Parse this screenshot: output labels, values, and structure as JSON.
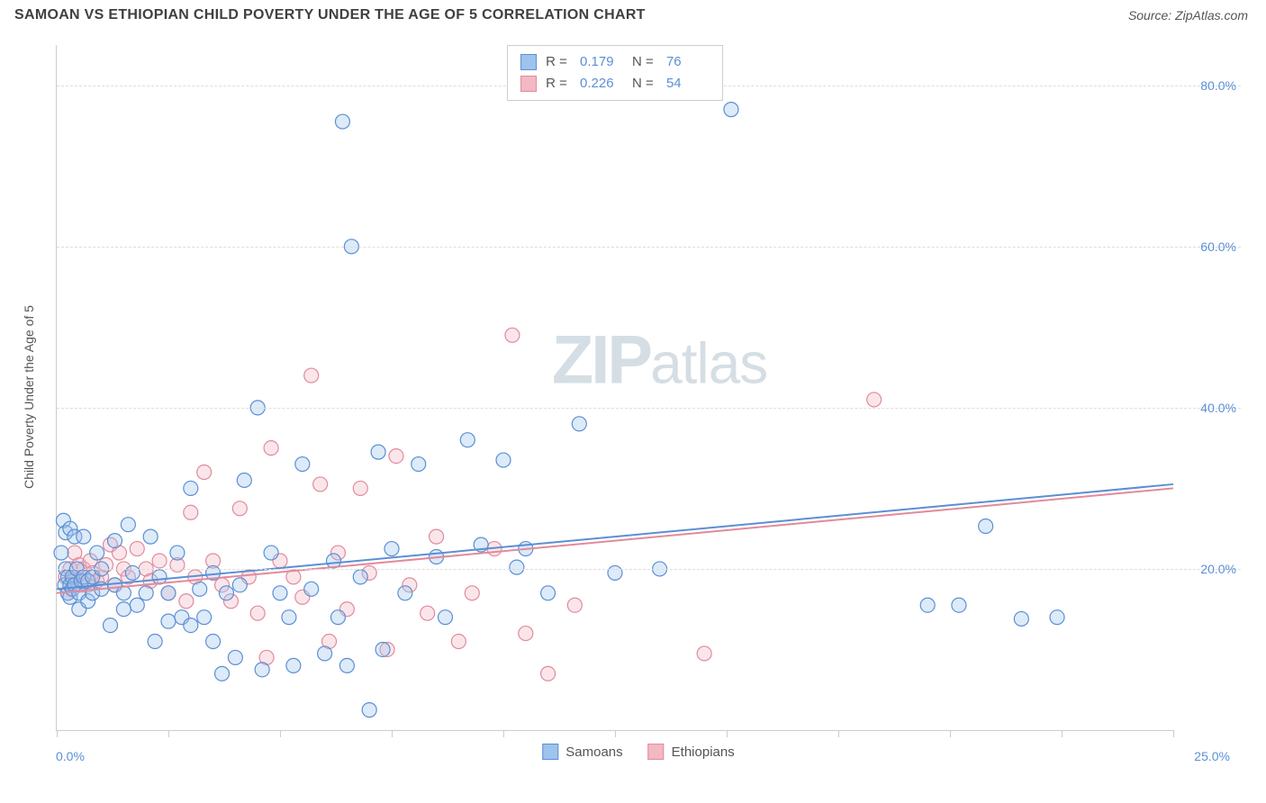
{
  "header": {
    "title": "SAMOAN VS ETHIOPIAN CHILD POVERTY UNDER THE AGE OF 5 CORRELATION CHART",
    "source": "Source: ZipAtlas.com"
  },
  "chart": {
    "type": "scatter",
    "ylabel": "Child Poverty Under the Age of 5",
    "xlim": [
      0,
      25
    ],
    "ylim": [
      0,
      85
    ],
    "xtick_labels": {
      "left": "0.0%",
      "right": "25.0%"
    },
    "xtick_positions_pct": [
      0,
      10,
      20,
      30,
      40,
      50,
      60,
      70,
      80,
      90,
      100
    ],
    "ytick_positions": [
      20,
      40,
      60,
      80
    ],
    "ytick_labels": [
      "20.0%",
      "40.0%",
      "60.0%",
      "80.0%"
    ],
    "grid_color": "#dddddd",
    "background_color": "#ffffff",
    "axis_color": "#cccccc",
    "label_color": "#555555",
    "tick_label_color": "#5b8fd6",
    "marker_radius": 8,
    "marker_stroke_width": 1.2,
    "marker_fill_opacity": 0.35,
    "trend_line_width": 2,
    "watermark": "ZIPatlas",
    "series": [
      {
        "name": "Samoans",
        "color_fill": "#9ec3ec",
        "color_stroke": "#5b8fd6",
        "r_value": "0.179",
        "n_value": "76",
        "trend": {
          "x0": 0,
          "y0": 17.5,
          "x1": 25,
          "y1": 30.5
        },
        "points": [
          [
            0.1,
            22
          ],
          [
            0.15,
            26
          ],
          [
            0.18,
            18
          ],
          [
            0.2,
            20
          ],
          [
            0.2,
            24.5
          ],
          [
            0.25,
            17
          ],
          [
            0.25,
            19
          ],
          [
            0.3,
            16.5
          ],
          [
            0.3,
            18
          ],
          [
            0.3,
            25
          ],
          [
            0.35,
            19
          ],
          [
            0.35,
            17.5
          ],
          [
            0.4,
            24
          ],
          [
            0.4,
            18
          ],
          [
            0.45,
            20
          ],
          [
            0.5,
            17
          ],
          [
            0.5,
            15
          ],
          [
            0.55,
            18.5
          ],
          [
            0.6,
            24
          ],
          [
            0.6,
            19
          ],
          [
            0.7,
            16
          ],
          [
            0.7,
            18.5
          ],
          [
            0.8,
            17
          ],
          [
            0.8,
            19
          ],
          [
            0.9,
            22
          ],
          [
            1.0,
            20
          ],
          [
            1.0,
            17.5
          ],
          [
            1.2,
            13
          ],
          [
            1.3,
            18
          ],
          [
            1.3,
            23.5
          ],
          [
            1.5,
            17
          ],
          [
            1.5,
            15
          ],
          [
            1.6,
            25.5
          ],
          [
            1.7,
            19.5
          ],
          [
            1.8,
            15.5
          ],
          [
            2.0,
            17
          ],
          [
            2.1,
            24
          ],
          [
            2.2,
            11
          ],
          [
            2.3,
            19
          ],
          [
            2.5,
            13.5
          ],
          [
            2.5,
            17
          ],
          [
            2.7,
            22
          ],
          [
            2.8,
            14
          ],
          [
            3.0,
            13
          ],
          [
            3.0,
            30
          ],
          [
            3.2,
            17.5
          ],
          [
            3.3,
            14
          ],
          [
            3.5,
            11
          ],
          [
            3.5,
            19.5
          ],
          [
            3.7,
            7
          ],
          [
            3.8,
            17
          ],
          [
            4.0,
            9
          ],
          [
            4.1,
            18
          ],
          [
            4.2,
            31
          ],
          [
            4.5,
            40
          ],
          [
            4.6,
            7.5
          ],
          [
            4.8,
            22
          ],
          [
            5.0,
            17
          ],
          [
            5.2,
            14
          ],
          [
            5.3,
            8
          ],
          [
            5.5,
            33
          ],
          [
            5.7,
            17.5
          ],
          [
            6.0,
            9.5
          ],
          [
            6.2,
            21
          ],
          [
            6.3,
            14
          ],
          [
            6.4,
            75.5
          ],
          [
            6.5,
            8
          ],
          [
            6.6,
            60
          ],
          [
            6.8,
            19
          ],
          [
            7.0,
            2.5
          ],
          [
            7.2,
            34.5
          ],
          [
            7.3,
            10
          ],
          [
            7.5,
            22.5
          ],
          [
            7.8,
            17
          ],
          [
            8.1,
            33
          ],
          [
            8.5,
            21.5
          ],
          [
            8.7,
            14
          ],
          [
            9.2,
            36
          ],
          [
            9.5,
            23
          ],
          [
            10.0,
            33.5
          ],
          [
            10.3,
            20.2
          ],
          [
            10.5,
            22.5
          ],
          [
            11.0,
            17
          ],
          [
            11.7,
            38
          ],
          [
            12.5,
            19.5
          ],
          [
            13.5,
            20
          ],
          [
            15.1,
            77
          ],
          [
            19.5,
            15.5
          ],
          [
            20.2,
            15.5
          ],
          [
            20.8,
            25.3
          ],
          [
            21.6,
            13.8
          ],
          [
            22.4,
            14
          ]
        ]
      },
      {
        "name": "Ethiopians",
        "color_fill": "#f2b8c3",
        "color_stroke": "#e28a9b",
        "r_value": "0.226",
        "n_value": "54",
        "trend": {
          "x0": 0,
          "y0": 17.0,
          "x1": 25,
          "y1": 30.0
        },
        "points": [
          [
            0.2,
            19
          ],
          [
            0.25,
            17
          ],
          [
            0.3,
            20
          ],
          [
            0.35,
            18.5
          ],
          [
            0.4,
            19
          ],
          [
            0.4,
            22
          ],
          [
            0.5,
            20.5
          ],
          [
            0.55,
            18
          ],
          [
            0.6,
            20
          ],
          [
            0.7,
            18
          ],
          [
            0.75,
            21
          ],
          [
            0.8,
            19.5
          ],
          [
            0.9,
            18.5
          ],
          [
            1.0,
            19
          ],
          [
            1.1,
            20.5
          ],
          [
            1.2,
            23
          ],
          [
            1.3,
            18
          ],
          [
            1.4,
            22
          ],
          [
            1.5,
            20
          ],
          [
            1.6,
            19
          ],
          [
            1.8,
            22.5
          ],
          [
            2.0,
            20
          ],
          [
            2.1,
            18.5
          ],
          [
            2.3,
            21
          ],
          [
            2.5,
            17
          ],
          [
            2.7,
            20.5
          ],
          [
            2.9,
            16
          ],
          [
            3.0,
            27
          ],
          [
            3.1,
            19
          ],
          [
            3.3,
            32
          ],
          [
            3.5,
            21
          ],
          [
            3.7,
            18
          ],
          [
            3.9,
            16
          ],
          [
            4.1,
            27.5
          ],
          [
            4.3,
            19
          ],
          [
            4.5,
            14.5
          ],
          [
            4.7,
            9
          ],
          [
            4.8,
            35
          ],
          [
            5.0,
            21
          ],
          [
            5.3,
            19
          ],
          [
            5.5,
            16.5
          ],
          [
            5.7,
            44
          ],
          [
            5.9,
            30.5
          ],
          [
            6.1,
            11
          ],
          [
            6.3,
            22
          ],
          [
            6.5,
            15
          ],
          [
            6.8,
            30
          ],
          [
            7.0,
            19.5
          ],
          [
            7.4,
            10
          ],
          [
            7.6,
            34
          ],
          [
            7.9,
            18
          ],
          [
            8.3,
            14.5
          ],
          [
            8.5,
            24
          ],
          [
            9.0,
            11
          ],
          [
            9.3,
            17
          ],
          [
            9.8,
            22.5
          ],
          [
            10.2,
            49
          ],
          [
            10.5,
            12
          ],
          [
            11.0,
            7
          ],
          [
            11.6,
            15.5
          ],
          [
            14.5,
            9.5
          ],
          [
            18.3,
            41
          ]
        ]
      }
    ],
    "legend_bottom": [
      {
        "label": "Samoans",
        "fill": "#9ec3ec",
        "stroke": "#5b8fd6"
      },
      {
        "label": "Ethiopians",
        "fill": "#f2b8c3",
        "stroke": "#e28a9b"
      }
    ]
  }
}
